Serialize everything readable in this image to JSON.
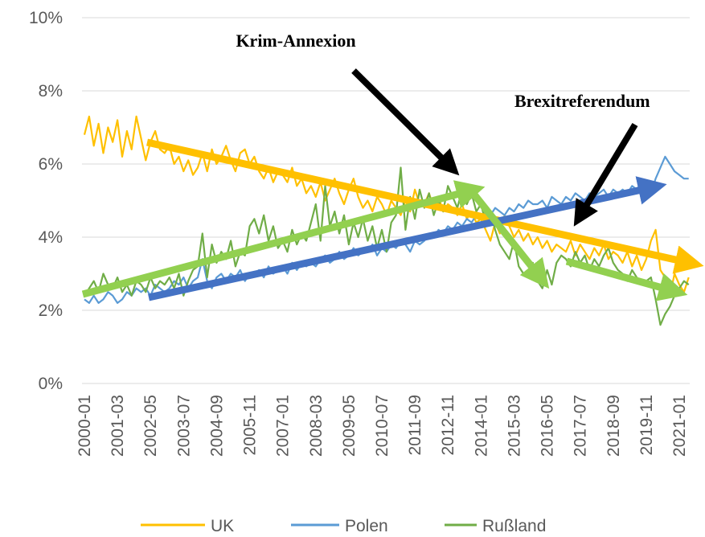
{
  "chart_data": {
    "type": "line",
    "annotations": [
      "Krim-Annexion",
      "Brexitreferendum"
    ],
    "categories": [
      "2000-01",
      null,
      null,
      null,
      null,
      null,
      null,
      "2001-03",
      null,
      null,
      null,
      null,
      null,
      null,
      "2002-05",
      null,
      null,
      null,
      null,
      null,
      null,
      "2003-07",
      null,
      null,
      null,
      null,
      null,
      null,
      "2004-09",
      null,
      null,
      null,
      null,
      null,
      null,
      "2005-11",
      null,
      null,
      null,
      null,
      null,
      null,
      "2007-01",
      null,
      null,
      null,
      null,
      null,
      null,
      "2008-03",
      null,
      null,
      null,
      null,
      null,
      null,
      "2009-05",
      null,
      null,
      null,
      null,
      null,
      null,
      "2010-07",
      null,
      null,
      null,
      null,
      null,
      null,
      "2011-09",
      null,
      null,
      null,
      null,
      null,
      null,
      "2012-11",
      null,
      null,
      null,
      null,
      null,
      null,
      "2014-01",
      null,
      null,
      null,
      null,
      null,
      null,
      "2015-03",
      null,
      null,
      null,
      null,
      null,
      null,
      "2016-05",
      null,
      null,
      null,
      null,
      null,
      null,
      "2017-07",
      null,
      null,
      null,
      null,
      null,
      null,
      "2018-09",
      null,
      null,
      null,
      null,
      null,
      null,
      "2019-11",
      null,
      null,
      null,
      null,
      null,
      null,
      "2021-01",
      null,
      null
    ],
    "series": [
      {
        "name": "UK",
        "color": "#ffc000",
        "values": [
          6.8,
          7.3,
          6.5,
          7.1,
          6.3,
          7.0,
          6.6,
          7.2,
          6.2,
          6.9,
          6.4,
          7.3,
          6.7,
          6.1,
          6.6,
          6.9,
          6.4,
          6.3,
          6.5,
          6.0,
          6.2,
          5.8,
          6.1,
          5.7,
          5.9,
          6.3,
          5.8,
          6.4,
          6.0,
          6.2,
          6.5,
          6.1,
          5.8,
          6.3,
          6.4,
          6.0,
          6.2,
          5.8,
          5.6,
          5.9,
          5.5,
          5.8,
          5.7,
          5.5,
          5.9,
          5.4,
          5.6,
          5.2,
          5.4,
          5.1,
          5.5,
          5.0,
          5.3,
          5.6,
          5.2,
          4.9,
          5.3,
          5.6,
          5.1,
          4.8,
          5.0,
          4.7,
          5.1,
          4.9,
          4.6,
          5.0,
          4.8,
          4.6,
          5.0,
          4.7,
          5.3,
          4.9,
          4.9,
          5.2,
          4.8,
          5.1,
          4.7,
          4.9,
          4.8,
          4.6,
          4.9,
          4.5,
          4.7,
          4.4,
          4.5,
          4.2,
          3.9,
          4.4,
          4.1,
          4.6,
          4.3,
          4.0,
          4.2,
          3.9,
          4.1,
          3.8,
          4.0,
          3.7,
          3.9,
          3.6,
          3.8,
          3.7,
          3.6,
          3.9,
          3.5,
          3.8,
          3.6,
          3.4,
          3.7,
          3.5,
          3.8,
          3.4,
          3.6,
          3.5,
          3.3,
          3.6,
          3.2,
          3.5,
          3.1,
          3.4,
          3.9,
          4.2,
          3.1,
          2.9,
          2.4,
          3.0,
          2.7,
          2.5,
          2.9
        ]
      },
      {
        "name": "Polen",
        "color": "#5b9bd5",
        "values": [
          2.3,
          2.2,
          2.4,
          2.2,
          2.3,
          2.5,
          2.4,
          2.2,
          2.3,
          2.5,
          2.4,
          2.6,
          2.5,
          2.6,
          2.4,
          2.7,
          2.6,
          2.5,
          2.6,
          2.8,
          2.7,
          2.9,
          2.6,
          2.8,
          2.9,
          3.4,
          2.8,
          2.6,
          2.9,
          3.0,
          2.8,
          3.0,
          2.9,
          3.1,
          2.8,
          3.0,
          3.0,
          3.1,
          2.9,
          3.2,
          3.0,
          3.1,
          3.2,
          3.0,
          3.3,
          3.1,
          3.3,
          3.2,
          3.3,
          3.2,
          3.4,
          3.5,
          3.3,
          3.4,
          3.6,
          3.4,
          3.5,
          3.7,
          3.5,
          3.6,
          3.6,
          3.8,
          3.5,
          3.7,
          3.6,
          3.8,
          3.7,
          3.9,
          3.8,
          3.6,
          3.9,
          3.8,
          3.9,
          4.1,
          4.0,
          4.2,
          4.1,
          4.3,
          4.2,
          4.4,
          4.3,
          4.5,
          4.4,
          4.6,
          4.5,
          4.7,
          4.6,
          4.8,
          4.7,
          4.6,
          4.8,
          4.7,
          4.9,
          4.8,
          5.0,
          4.9,
          4.9,
          5.0,
          4.8,
          5.1,
          5.0,
          4.9,
          5.1,
          5.0,
          5.2,
          5.1,
          5.0,
          5.2,
          5.1,
          5.2,
          5.3,
          5.1,
          5.3,
          5.2,
          5.3,
          5.2,
          5.4,
          5.3,
          5.5,
          5.4,
          5.2,
          5.6,
          5.9,
          6.2,
          6.0,
          5.8,
          5.7,
          5.6,
          5.6
        ]
      },
      {
        "name": "Rußland",
        "color": "#70ad47",
        "values": [
          2.4,
          2.6,
          2.8,
          2.5,
          3.0,
          2.7,
          2.6,
          2.9,
          2.5,
          2.7,
          2.4,
          2.8,
          2.7,
          2.5,
          2.9,
          2.6,
          2.8,
          2.7,
          2.9,
          2.6,
          3.0,
          2.4,
          2.8,
          3.1,
          3.2,
          4.1,
          2.9,
          3.8,
          3.3,
          3.6,
          3.4,
          3.9,
          3.2,
          3.6,
          3.5,
          4.3,
          4.5,
          4.1,
          4.6,
          3.9,
          4.3,
          3.7,
          3.9,
          3.6,
          4.2,
          3.8,
          4.1,
          3.9,
          4.4,
          4.9,
          3.9,
          5.4,
          4.3,
          4.7,
          4.1,
          4.6,
          3.8,
          4.4,
          4.0,
          4.5,
          3.9,
          4.3,
          3.7,
          4.2,
          3.6,
          4.4,
          4.6,
          5.9,
          4.2,
          5.1,
          4.5,
          5.3,
          4.8,
          5.2,
          4.6,
          5.0,
          4.7,
          5.4,
          5.1,
          4.8,
          5.3,
          4.9,
          5.2,
          4.7,
          4.9,
          4.4,
          4.7,
          4.2,
          3.8,
          3.6,
          3.4,
          3.9,
          3.2,
          3.0,
          2.9,
          3.3,
          2.8,
          2.6,
          3.1,
          2.7,
          3.3,
          3.5,
          3.4,
          3.2,
          3.6,
          3.3,
          3.5,
          3.1,
          3.4,
          3.2,
          3.5,
          3.7,
          3.3,
          3.1,
          3.0,
          2.8,
          3.1,
          2.9,
          2.7,
          2.8,
          2.9,
          2.3,
          1.6,
          1.9,
          2.1,
          2.4,
          2.6,
          2.8,
          2.7
        ]
      }
    ],
    "ylim": [
      0,
      10
    ],
    "yticks": [
      {
        "value": 0,
        "label": "0%"
      },
      {
        "value": 2,
        "label": "2%"
      },
      {
        "value": 4,
        "label": "4%"
      },
      {
        "value": 6,
        "label": "6%"
      },
      {
        "value": 8,
        "label": "8%"
      },
      {
        "value": 10,
        "label": "10%"
      }
    ],
    "grid": true
  }
}
